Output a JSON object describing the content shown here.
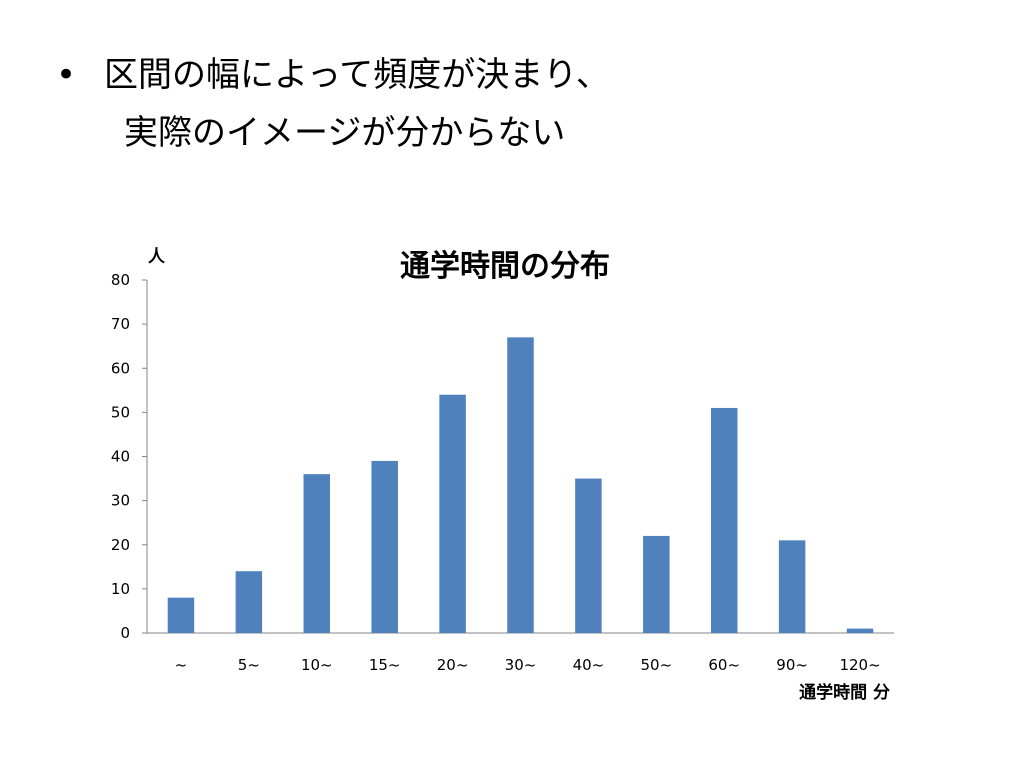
{
  "slide": {
    "bullet_symbol": "•",
    "lines": [
      "区間の幅によって頻度が決まり、",
      "実際のイメージが分からない"
    ]
  },
  "chart_data": {
    "type": "bar",
    "title": "通学時間の分布",
    "ylabel": "人",
    "xlabel": "通学時間 分",
    "categories": [
      "~",
      "5~",
      "10~",
      "15~",
      "20~",
      "30~",
      "40~",
      "50~",
      "60~",
      "90~",
      "120~"
    ],
    "values": [
      8,
      14,
      36,
      39,
      54,
      67,
      35,
      22,
      51,
      21,
      1
    ],
    "ylim": [
      0,
      80
    ],
    "yticks": [
      0,
      10,
      20,
      30,
      40,
      50,
      60,
      70,
      80
    ],
    "bar_color": "#4F81BD",
    "grid": false,
    "legend": "none"
  }
}
